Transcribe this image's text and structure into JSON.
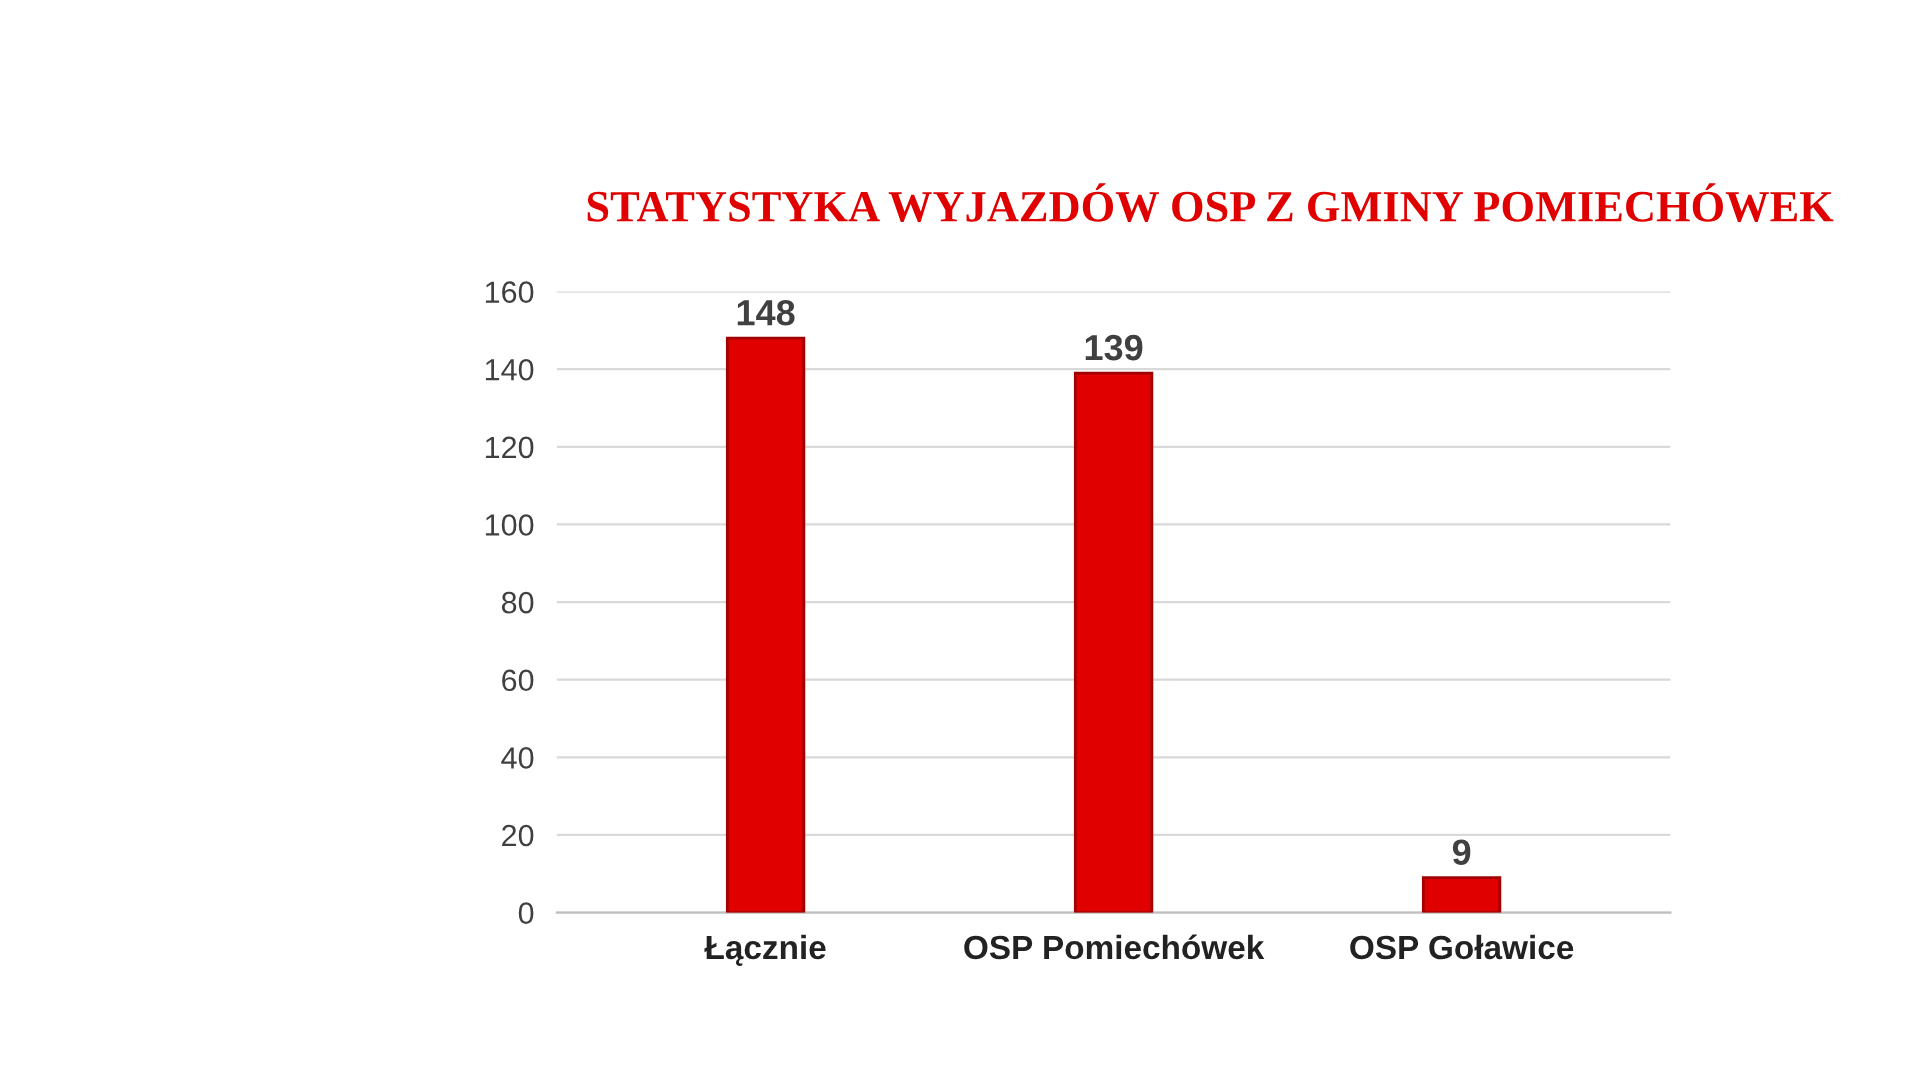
{
  "chart_data": {
    "type": "bar",
    "title": "STATYSTYKA WYJAZDÓW OSP Z GMINY POMIECHÓWEK",
    "categories": [
      "Łącznie",
      "OSP Pomiechówek",
      "OSP Goławice"
    ],
    "values": [
      148,
      139,
      9
    ],
    "color": "#e00000",
    "ylim": [
      0,
      160
    ],
    "yticks": [
      0,
      20,
      40,
      60,
      80,
      100,
      120,
      140,
      160
    ],
    "grid": "y",
    "data_labels": true
  }
}
